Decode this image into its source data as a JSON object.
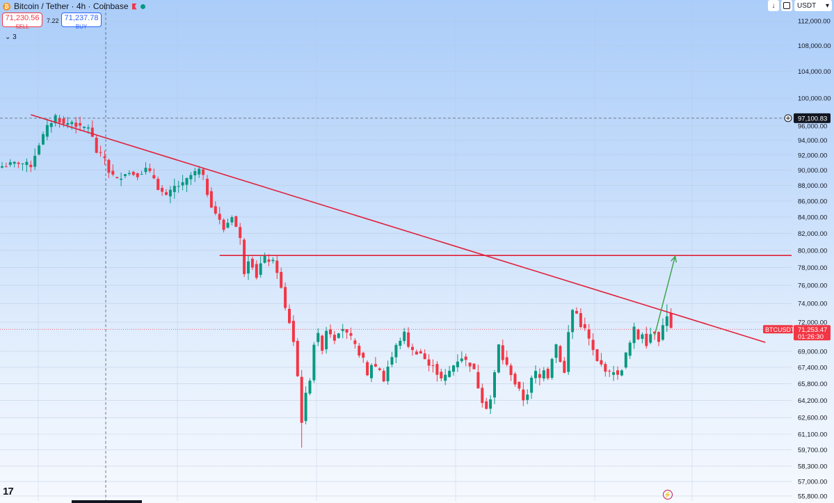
{
  "header": {
    "symbol_title": "Bitcoin / Tether · 4h · Coinbase",
    "coin_glyph": "₿",
    "sell_price": "71,230.56",
    "sell_label": "SELL",
    "spread": "7.22",
    "buy_price": "71,237.78",
    "buy_label": "BUY",
    "indicator_count": "3"
  },
  "toolbar": {
    "currency": "USDT",
    "download_glyph": "↓",
    "currency_caret": "▾"
  },
  "footer": {
    "logo": "17",
    "bolt_glyph": "⚡"
  },
  "colors": {
    "up": "#089981",
    "down": "#f23645",
    "trendline": "#e0203a",
    "arrow": "#3fa34d",
    "price_line": "#f23645",
    "crosshair": "#555c6b"
  },
  "chart_data": {
    "type": "candlestick",
    "symbol": "BTCUSDT",
    "interval": "4h",
    "y_scale": "log",
    "ylim": [
      55400,
      115000
    ],
    "y_ticks": [
      112000,
      108000,
      104000,
      100000,
      96000,
      94000,
      92000,
      90000,
      88000,
      86000,
      84000,
      82000,
      80000,
      78000,
      76000,
      74000,
      72000,
      69000,
      67400,
      65800,
      64200,
      62600,
      61100,
      59700,
      58300,
      57000,
      55800
    ],
    "y_tick_labels": [
      "112,000.00",
      "108,000.00",
      "104,000.00",
      "100,000.00",
      "96,000.00",
      "94,000.00",
      "92,000.00",
      "90,000.00",
      "88,000.00",
      "86,000.00",
      "84,000.00",
      "82,000.00",
      "80,000.00",
      "78,000.00",
      "76,000.00",
      "74,000.00",
      "72,000.00",
      "69,000.00",
      "67,400.00",
      "65,800.00",
      "64,200.00",
      "62,600.00",
      "61,100.00",
      "59,700.00",
      "58,300.00",
      "57,000.00",
      "55,800.00"
    ],
    "crosshair_price": 97100.83,
    "crosshair_label": "97,100.83",
    "last_price": 71253.47,
    "last_price_label": "71,253.47",
    "countdown": "01:26:30",
    "ticker_label": "BTCUSDT",
    "price_path": [
      [
        0,
        90500
      ],
      [
        4,
        91000
      ],
      [
        7,
        90600
      ],
      [
        9,
        93500
      ],
      [
        11,
        95800
      ],
      [
        13,
        97400
      ],
      [
        15,
        96200
      ],
      [
        17,
        96600
      ],
      [
        19,
        95700
      ],
      [
        21,
        95900
      ],
      [
        22,
        94300
      ],
      [
        23,
        92400
      ],
      [
        25,
        91600
      ],
      [
        26,
        89800
      ],
      [
        28,
        88700
      ],
      [
        30,
        89700
      ],
      [
        33,
        89400
      ],
      [
        35,
        90100
      ],
      [
        37,
        89000
      ],
      [
        38,
        87700
      ],
      [
        40,
        86500
      ],
      [
        42,
        87800
      ],
      [
        44,
        88100
      ],
      [
        46,
        89300
      ],
      [
        48,
        90000
      ],
      [
        49,
        89000
      ],
      [
        50,
        87000
      ],
      [
        51,
        85500
      ],
      [
        53,
        83500
      ],
      [
        54,
        82500
      ],
      [
        56,
        84200
      ],
      [
        57,
        82800
      ],
      [
        58,
        81300
      ],
      [
        59,
        77500
      ],
      [
        60,
        79000
      ],
      [
        61,
        78300
      ],
      [
        62,
        77000
      ],
      [
        63,
        78400
      ],
      [
        64,
        79100
      ],
      [
        66,
        78600
      ],
      [
        67,
        77600
      ],
      [
        68,
        75600
      ],
      [
        69,
        73400
      ],
      [
        70,
        72000
      ],
      [
        71,
        70000
      ],
      [
        72,
        66500
      ],
      [
        73,
        62300
      ],
      [
        74,
        64700
      ],
      [
        75,
        66300
      ],
      [
        76,
        69800
      ],
      [
        77,
        70600
      ],
      [
        78,
        69300
      ],
      [
        79,
        71200
      ],
      [
        80,
        70900
      ],
      [
        81,
        70300
      ],
      [
        82,
        71100
      ],
      [
        83,
        71400
      ],
      [
        84,
        70700
      ],
      [
        85,
        70300
      ],
      [
        86,
        69500
      ],
      [
        88,
        68100
      ],
      [
        89,
        66500
      ],
      [
        90,
        67700
      ],
      [
        92,
        67200
      ],
      [
        93,
        66100
      ],
      [
        94,
        67500
      ],
      [
        95,
        68400
      ],
      [
        96,
        69500
      ],
      [
        97,
        70200
      ],
      [
        98,
        70800
      ],
      [
        99,
        69600
      ],
      [
        100,
        69000
      ],
      [
        102,
        68800
      ],
      [
        103,
        68200
      ],
      [
        104,
        67400
      ],
      [
        105,
        67800
      ],
      [
        106,
        66800
      ],
      [
        107,
        66200
      ],
      [
        108,
        66500
      ],
      [
        109,
        67000
      ],
      [
        110,
        67600
      ],
      [
        111,
        68100
      ],
      [
        112,
        68400
      ],
      [
        113,
        68000
      ],
      [
        114,
        67700
      ],
      [
        115,
        67000
      ],
      [
        116,
        65500
      ],
      [
        117,
        64200
      ],
      [
        118,
        63600
      ],
      [
        119,
        64300
      ],
      [
        120,
        66800
      ],
      [
        121,
        69600
      ],
      [
        122,
        68200
      ],
      [
        123,
        67500
      ],
      [
        124,
        66800
      ],
      [
        125,
        65800
      ],
      [
        126,
        65100
      ],
      [
        127,
        64300
      ],
      [
        128,
        64900
      ],
      [
        129,
        66200
      ],
      [
        130,
        66900
      ],
      [
        131,
        66300
      ],
      [
        132,
        67300
      ],
      [
        133,
        66500
      ],
      [
        134,
        68400
      ],
      [
        135,
        69700
      ],
      [
        136,
        68100
      ],
      [
        137,
        66800
      ],
      [
        138,
        70900
      ],
      [
        139,
        73300
      ],
      [
        140,
        72900
      ],
      [
        141,
        71700
      ],
      [
        142,
        71200
      ],
      [
        143,
        70200
      ],
      [
        144,
        69000
      ],
      [
        145,
        67900
      ],
      [
        146,
        67600
      ],
      [
        147,
        67200
      ],
      [
        148,
        66800
      ],
      [
        149,
        67100
      ],
      [
        150,
        66500
      ],
      [
        151,
        67300
      ],
      [
        152,
        68700
      ],
      [
        153,
        69800
      ],
      [
        154,
        71300
      ],
      [
        155,
        70300
      ],
      [
        156,
        70900
      ],
      [
        157,
        69800
      ],
      [
        158,
        70800
      ],
      [
        159,
        71000
      ],
      [
        160,
        70200
      ],
      [
        161,
        71600
      ],
      [
        162,
        72800
      ],
      [
        163,
        71253
      ]
    ],
    "drawings": {
      "descending_trendline": [
        [
          7,
          97600
        ],
        [
          186,
          69900
        ]
      ],
      "horizontal_level": 79400,
      "projection_arrow": [
        [
          159,
          70600
        ],
        [
          164,
          79300
        ]
      ]
    }
  }
}
